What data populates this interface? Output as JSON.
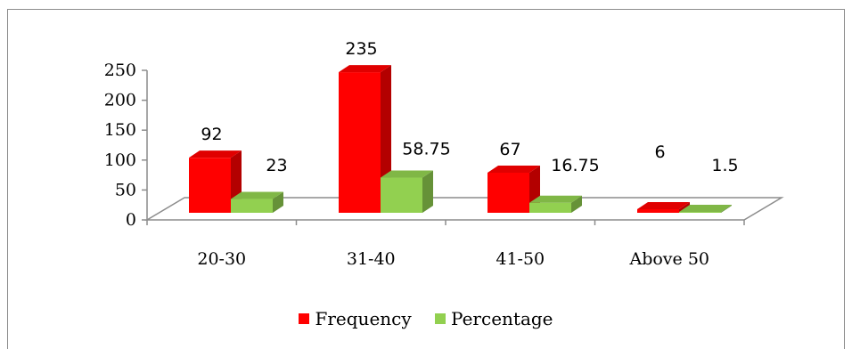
{
  "chart_data": {
    "type": "bar",
    "style": "3d-clustered-column",
    "categories": [
      "20-30",
      "31-40",
      "41-50",
      "Above 50"
    ],
    "series": [
      {
        "name": "Frequency",
        "values": [
          92,
          235,
          67,
          6
        ],
        "labels": [
          "92",
          "235",
          "67",
          "6"
        ],
        "color": "#ff0000"
      },
      {
        "name": "Percentage",
        "values": [
          23,
          58.75,
          16.75,
          1.5
        ],
        "labels": [
          "23",
          "58.75",
          "16.75",
          "1.5"
        ],
        "color": "#92d050"
      }
    ],
    "ylim": [
      0,
      250
    ],
    "yticks": [
      "0",
      "50",
      "100",
      "150",
      "200",
      "250"
    ],
    "legend_position": "bottom",
    "grid": false
  }
}
